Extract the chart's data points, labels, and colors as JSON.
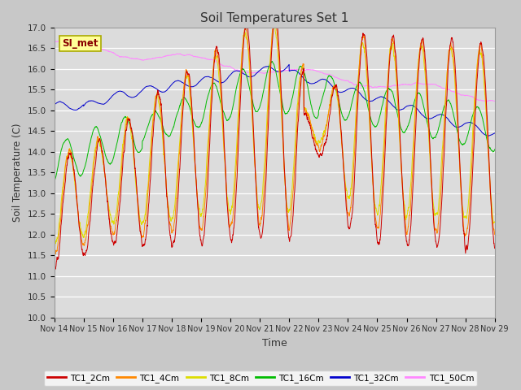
{
  "title": "Soil Temperatures Set 1",
  "xlabel": "Time",
  "ylabel": "Soil Temperature (C)",
  "ylim": [
    10.0,
    17.0
  ],
  "yticks": [
    10.0,
    10.5,
    11.0,
    11.5,
    12.0,
    12.5,
    13.0,
    13.5,
    14.0,
    14.5,
    15.0,
    15.5,
    16.0,
    16.5,
    17.0
  ],
  "xlim": [
    0,
    15
  ],
  "xtick_labels": [
    "Nov 14",
    "Nov 15",
    "Nov 16",
    "Nov 17",
    "Nov 18",
    "Nov 19",
    "Nov 20",
    "Nov 21",
    "Nov 22",
    "Nov 23",
    "Nov 24",
    "Nov 25",
    "Nov 26",
    "Nov 27",
    "Nov 28",
    "Nov 29"
  ],
  "series_colors": [
    "#cc0000",
    "#ff8800",
    "#dddd00",
    "#00bb00",
    "#0000cc",
    "#ff88ff"
  ],
  "series_labels": [
    "TC1_2Cm",
    "TC1_4Cm",
    "TC1_8Cm",
    "TC1_16Cm",
    "TC1_32Cm",
    "TC1_50Cm"
  ],
  "annotation_text": "SI_met",
  "annotation_bg": "#ffff99",
  "annotation_border": "#aaaa00",
  "figsize": [
    6.4,
    4.8
  ],
  "dpi": 100
}
